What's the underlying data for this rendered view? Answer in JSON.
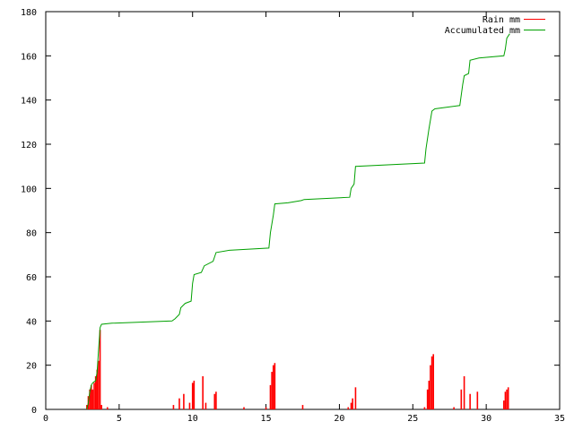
{
  "chart_data": {
    "type": "line",
    "xlim": [
      0,
      35
    ],
    "ylim": [
      0,
      180
    ],
    "x_ticks": [
      0,
      5,
      10,
      15,
      20,
      25,
      30,
      35
    ],
    "y_ticks": [
      0,
      20,
      40,
      60,
      80,
      100,
      120,
      140,
      160,
      180
    ],
    "grid": false,
    "legend_position": "top-right",
    "colors": {
      "rain": "#ff0000",
      "accumulated": "#00a000",
      "axes": "#000000"
    },
    "series": [
      {
        "name": "Rain mm",
        "style": "impulses",
        "points": [
          [
            2.8,
            2
          ],
          [
            2.9,
            6
          ],
          [
            3.0,
            9
          ],
          [
            3.1,
            11
          ],
          [
            3.2,
            9
          ],
          [
            3.3,
            12
          ],
          [
            3.4,
            15
          ],
          [
            3.5,
            18
          ],
          [
            3.6,
            22
          ],
          [
            3.7,
            36
          ],
          [
            3.8,
            2
          ],
          [
            4.2,
            1
          ],
          [
            8.7,
            2
          ],
          [
            9.1,
            5
          ],
          [
            9.4,
            7
          ],
          [
            9.8,
            3
          ],
          [
            10.0,
            12
          ],
          [
            10.1,
            13
          ],
          [
            10.7,
            15
          ],
          [
            10.9,
            3
          ],
          [
            11.5,
            7
          ],
          [
            11.6,
            8
          ],
          [
            13.5,
            1
          ],
          [
            15.0,
            1
          ],
          [
            15.3,
            11
          ],
          [
            15.4,
            17
          ],
          [
            15.5,
            20
          ],
          [
            15.6,
            21
          ],
          [
            17.5,
            2
          ],
          [
            20.6,
            1
          ],
          [
            20.8,
            3
          ],
          [
            20.9,
            5
          ],
          [
            21.1,
            10
          ],
          [
            25.8,
            1
          ],
          [
            26.0,
            9
          ],
          [
            26.1,
            13
          ],
          [
            26.2,
            20
          ],
          [
            26.3,
            24
          ],
          [
            26.4,
            25
          ],
          [
            27.8,
            1
          ],
          [
            28.3,
            9
          ],
          [
            28.5,
            15
          ],
          [
            28.9,
            7
          ],
          [
            29.4,
            8
          ],
          [
            31.2,
            4
          ],
          [
            31.3,
            8
          ],
          [
            31.4,
            9
          ],
          [
            31.5,
            10
          ]
        ]
      },
      {
        "name": "Accumulated mm",
        "style": "lines",
        "points": [
          [
            2.8,
            0
          ],
          [
            2.9,
            3
          ],
          [
            3.0,
            8
          ],
          [
            3.1,
            11
          ],
          [
            3.2,
            12
          ],
          [
            3.4,
            13
          ],
          [
            3.5,
            17
          ],
          [
            3.6,
            27
          ],
          [
            3.7,
            37
          ],
          [
            3.8,
            38.5
          ],
          [
            4.5,
            39
          ],
          [
            8.6,
            40
          ],
          [
            8.8,
            41
          ],
          [
            9.1,
            43
          ],
          [
            9.2,
            46
          ],
          [
            9.5,
            48
          ],
          [
            9.9,
            49
          ],
          [
            10.0,
            57
          ],
          [
            10.1,
            61
          ],
          [
            10.6,
            62
          ],
          [
            10.8,
            65
          ],
          [
            11.4,
            67
          ],
          [
            11.6,
            71
          ],
          [
            12.5,
            72
          ],
          [
            15.2,
            73
          ],
          [
            15.3,
            80
          ],
          [
            15.5,
            88
          ],
          [
            15.6,
            93
          ],
          [
            16.5,
            93.5
          ],
          [
            17.4,
            94.5
          ],
          [
            17.6,
            95
          ],
          [
            20.7,
            96
          ],
          [
            20.8,
            100
          ],
          [
            21.0,
            102
          ],
          [
            21.1,
            110
          ],
          [
            25.8,
            111.5
          ],
          [
            25.9,
            118
          ],
          [
            26.1,
            127
          ],
          [
            26.3,
            135
          ],
          [
            26.5,
            136
          ],
          [
            28.2,
            137.5
          ],
          [
            28.4,
            147
          ],
          [
            28.5,
            151
          ],
          [
            28.8,
            152
          ],
          [
            28.9,
            158
          ],
          [
            29.5,
            159
          ],
          [
            31.2,
            160
          ],
          [
            31.3,
            163
          ],
          [
            31.4,
            168
          ],
          [
            31.6,
            170
          ]
        ]
      }
    ]
  }
}
